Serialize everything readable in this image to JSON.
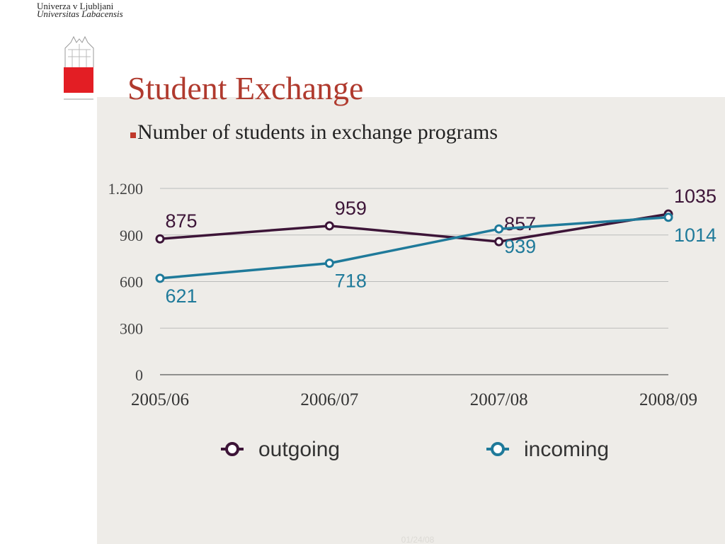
{
  "header": {
    "university": "Univerza v Ljubljani",
    "latin": "Universitas Labacensis"
  },
  "slide": {
    "title": "Student Exchange",
    "bullet": "Number of students in exchange programs",
    "footer": "01/24/08"
  },
  "chart_data": {
    "type": "line",
    "categories": [
      "2005/06",
      "2006/07",
      "2007/08",
      "2008/09"
    ],
    "series": [
      {
        "name": "outgoing",
        "color": "#3d1538",
        "values": [
          875,
          959,
          857,
          1035
        ]
      },
      {
        "name": "incoming",
        "color": "#1f7a9a",
        "values": [
          621,
          718,
          939,
          1014
        ]
      }
    ],
    "ylim": [
      0,
      1200
    ],
    "yticks": [
      0,
      300,
      600,
      900,
      {
        "value": 1200,
        "label": "1.200"
      }
    ],
    "grid": true,
    "legend": "bottom"
  }
}
